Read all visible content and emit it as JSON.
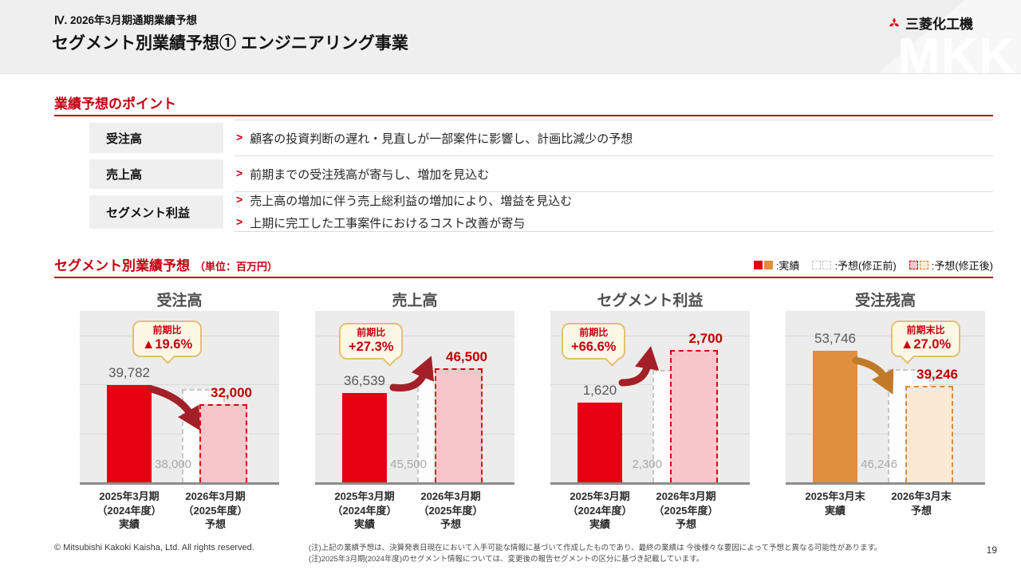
{
  "header": {
    "breadcrumb": "Ⅳ. 2026年3月期通期業績予想",
    "title": "セグメント別業績予想① エンジニアリング事業",
    "company": "三菱化工機",
    "watermark": "MKK"
  },
  "points": {
    "heading": "業績予想のポイント",
    "rows": [
      {
        "label": "受注高",
        "bullets": [
          "顧客の投資判断の遅れ・見直しが一部案件に影響し、計画比減少の予想"
        ]
      },
      {
        "label": "売上高",
        "bullets": [
          "前期までの受注残高が寄与し、増加を見込む"
        ]
      },
      {
        "label": "セグメント利益",
        "bullets": [
          "売上高の増加に伴う売上総利益の増加により、増益を見込む",
          "上期に完工した工事案件におけるコスト改善が寄与"
        ]
      }
    ]
  },
  "forecast": {
    "heading": "セグメント別業績予想",
    "unit": "（単位：百万円）",
    "legend": [
      {
        "label": ":実績"
      },
      {
        "label": ":予想(修正前)"
      },
      {
        "label": ":予想(修正後)"
      }
    ]
  },
  "chart_data": [
    {
      "type": "bar",
      "title": "受注高",
      "ylabel": "百万円",
      "ylim": [
        0,
        70000
      ],
      "gridline_step": 20000,
      "legend_position": "top-right-of-section",
      "categories": [
        [
          "2025年3月期",
          "（2024年度）",
          "実績"
        ],
        [
          "2026年3月期",
          "（2025年度）",
          "予想"
        ]
      ],
      "series": [
        {
          "name": "実績",
          "value": 39782,
          "display": "39,782"
        },
        {
          "name": "予想(修正前)",
          "value": 38000,
          "display": "38,000"
        },
        {
          "name": "予想(修正後)",
          "value": 32000,
          "display": "32,000"
        }
      ],
      "callout": {
        "line1": "前期比",
        "line2": "▲19.6%"
      },
      "trend": "down"
    },
    {
      "type": "bar",
      "title": "売上高",
      "ylabel": "百万円",
      "ylim": [
        0,
        70000
      ],
      "gridline_step": 20000,
      "categories": [
        [
          "2025年3月期",
          "（2024年度）",
          "実績"
        ],
        [
          "2026年3月期",
          "（2025年度）",
          "予想"
        ]
      ],
      "series": [
        {
          "name": "実績",
          "value": 36539,
          "display": "36,539"
        },
        {
          "name": "予想(修正前)",
          "value": 45500,
          "display": "45,500"
        },
        {
          "name": "予想(修正後)",
          "value": 46500,
          "display": "46,500"
        }
      ],
      "callout": {
        "line1": "前期比",
        "line2": "+27.3%"
      },
      "trend": "up"
    },
    {
      "type": "bar",
      "title": "セグメント利益",
      "ylabel": "百万円",
      "ylim": [
        0,
        3500
      ],
      "gridline_step": 1000,
      "categories": [
        [
          "2025年3月期",
          "（2024年度）",
          "実績"
        ],
        [
          "2026年3月期",
          "（2025年度）",
          "予想"
        ]
      ],
      "series": [
        {
          "name": "実績",
          "value": 1620,
          "display": "1,620"
        },
        {
          "name": "予想(修正前)",
          "value": 2300,
          "display": "2,300"
        },
        {
          "name": "予想(修正後)",
          "value": 2700,
          "display": "2,700"
        }
      ],
      "callout": {
        "line1": "前期比",
        "line2": "+66.6%"
      },
      "trend": "up"
    },
    {
      "type": "bar",
      "title": "受注残高",
      "ylabel": "百万円",
      "ylim": [
        0,
        70000
      ],
      "gridline_step": 20000,
      "categories": [
        [
          "2025年3月末",
          "実績"
        ],
        [
          "2026年3月末",
          "予想"
        ]
      ],
      "series": [
        {
          "name": "実績",
          "value": 53746,
          "display": "53,746"
        },
        {
          "name": "予想(修正前)",
          "value": 46246,
          "display": "46,246"
        },
        {
          "name": "予想(修正後)",
          "value": 39246,
          "display": "39,246"
        }
      ],
      "callout": {
        "line1": "前期末比",
        "line2": "▲27.0%"
      },
      "trend": "down"
    }
  ],
  "footer": {
    "copyright": "© Mitsubishi Kakoki Kaisha, Ltd. All rights reserved.",
    "note1": "(注)上記の業績予想は、決算発表日現在において入手可能な情報に基づいて作成したものであり、最終の業績は 今後様々な要因によって予想と異なる可能性があります。",
    "note2": "(注)2025年3月期(2024年度)のセグメント情報については、変更後の報告セグメントの区分に基づき記載しています。",
    "page": "19"
  },
  "colors": {
    "accent_red": "#c00000",
    "bar_actual_red": "#e60012",
    "bar_actual_orange": "#df8f3e",
    "forecast_pink": "#f6c6cb",
    "forecast_cream": "#fae9d4",
    "forecast_border_red": "#d7000f",
    "forecast_border_orange": "#dc8c3a",
    "arrow_dark_red": "#a32029",
    "arrow_orange": "#c07a28",
    "callout_bg": "#fdf8e6",
    "callout_border": "#e4bf70",
    "panel_bg": "#ececec"
  }
}
